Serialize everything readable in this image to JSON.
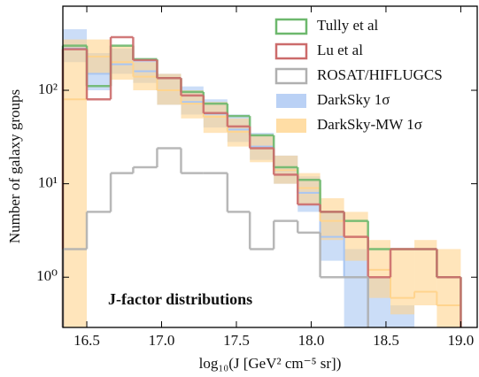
{
  "chart_data": {
    "type": "histogram",
    "xlabel": "log₁₀(J [GeV² cm⁻⁵ sr])",
    "ylabel": "Number of galaxy groups",
    "annotation": "J-factor distributions",
    "bins": [
      16.34,
      16.5,
      16.66,
      16.81,
      16.97,
      17.13,
      17.28,
      17.44,
      17.59,
      17.75,
      17.91,
      18.06,
      18.22,
      18.38,
      18.53,
      18.69,
      18.84,
      19.0
    ],
    "xlim": [
      16.34,
      19.11
    ],
    "xticks": [
      16.5,
      {
        "value": 17,
        "label": "17.0"
      },
      17.5,
      {
        "value": 18,
        "label": "18.0"
      },
      18.5,
      {
        "value": 19,
        "label": "19.0"
      }
    ],
    "ylim": [
      0.29,
      794
    ],
    "log_y": true,
    "yticks": [
      {
        "value": 1,
        "label": "10⁰"
      },
      {
        "value": 10,
        "label": "10¹"
      },
      {
        "value": 100,
        "label": "10²"
      }
    ],
    "legend": "upper right",
    "bands": [
      {
        "name": "DarkSky 1σ",
        "color": "#a9c6f2",
        "lower": [
          200,
          100,
          150,
          120,
          70,
          55,
          40,
          28,
          18,
          10,
          5,
          1.5,
          null,
          null,
          null,
          null,
          null
        ],
        "upper": [
          450,
          250,
          280,
          220,
          150,
          110,
          80,
          55,
          35,
          20,
          12,
          5,
          2,
          1,
          0.5,
          null,
          null
        ],
        "median": [
          280,
          150,
          190,
          160,
          100,
          75,
          56,
          38,
          25,
          14,
          8,
          2.7,
          1,
          null,
          null,
          null,
          null
        ]
      },
      {
        "name": "DarkSky-MW 1σ",
        "color": "#ffd48e",
        "lower": [
          null,
          150,
          130,
          100,
          70,
          50,
          35,
          25,
          17,
          10,
          6,
          2.5,
          1.5,
          0.6,
          0.4,
          0.5,
          null
        ],
        "upper": [
          350,
          350,
          300,
          200,
          150,
          100,
          75,
          50,
          33,
          20,
          13,
          7,
          5,
          2.5,
          2,
          2.5,
          2
        ],
        "median": [
          80,
          230,
          200,
          140,
          100,
          72,
          52,
          36,
          24,
          14,
          9,
          4,
          2.7,
          1.2,
          0.6,
          0.7,
          0.5
        ]
      }
    ],
    "series": [
      {
        "name": "Tully et al",
        "color": "#6db86d",
        "values": [
          300,
          111,
          300,
          215,
          135,
          96,
          72,
          53,
          33,
          15,
          11,
          5,
          4,
          2,
          2,
          2,
          1
        ]
      },
      {
        "name": "Lu et al",
        "color": "#cc6b6b",
        "values": [
          275,
          80,
          370,
          210,
          135,
          88,
          57,
          41,
          24,
          12.5,
          6,
          5,
          2.7,
          1,
          2,
          2,
          1
        ]
      },
      {
        "name": "ROSAT/HIFLUGCS",
        "color": "#b0b0b0",
        "values": [
          2,
          5,
          13,
          15,
          24,
          13,
          13,
          5,
          2,
          4,
          3,
          1,
          1,
          null,
          null,
          null,
          null
        ]
      }
    ]
  }
}
